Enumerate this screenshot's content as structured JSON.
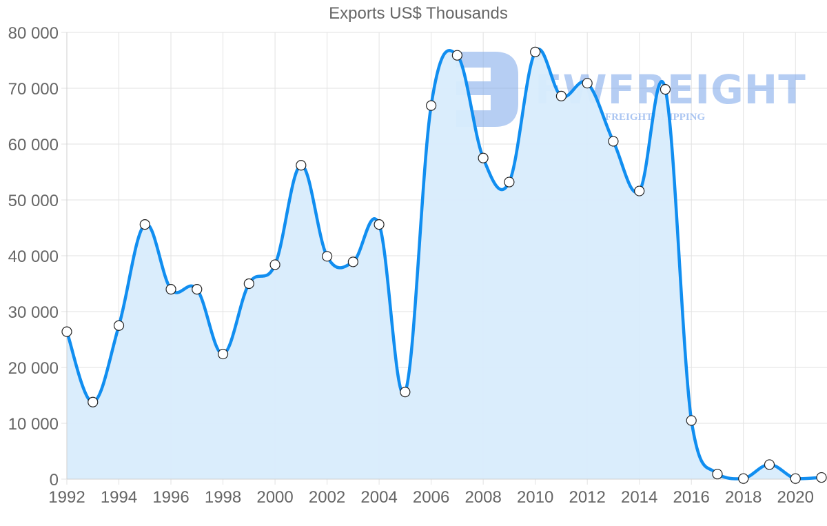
{
  "chart_data": {
    "type": "area",
    "title": "Exports US$ Thousands",
    "xlabel": "",
    "ylabel": "",
    "x": [
      1992,
      1993,
      1994,
      1995,
      1996,
      1997,
      1998,
      1999,
      2000,
      2001,
      2002,
      2003,
      2004,
      2005,
      2006,
      2007,
      2008,
      2009,
      2010,
      2011,
      2012,
      2013,
      2014,
      2015,
      2016,
      2017,
      2018,
      2019,
      2020,
      2021
    ],
    "series": [
      {
        "name": "Exports US$ Thousands",
        "values": [
          26400,
          13800,
          27500,
          45600,
          34000,
          34000,
          22400,
          35000,
          38400,
          56200,
          39900,
          38900,
          45600,
          15600,
          66900,
          75900,
          57500,
          53200,
          76500,
          68600,
          70900,
          60500,
          51600,
          69800,
          10500,
          900,
          100,
          2600,
          100,
          300
        ]
      }
    ],
    "ylim": [
      0,
      80000
    ],
    "y_ticks": [
      0,
      10000,
      20000,
      30000,
      40000,
      50000,
      60000,
      70000,
      80000
    ],
    "y_tick_labels": [
      "0",
      "10 000",
      "20 000",
      "30 000",
      "40 000",
      "50 000",
      "60 000",
      "70 000",
      "80 000"
    ],
    "x_tick_labels": [
      "1992",
      "1994",
      "1996",
      "1998",
      "2000",
      "2002",
      "2004",
      "2006",
      "2008",
      "2010",
      "2012",
      "2014",
      "2016",
      "2018",
      "2020"
    ],
    "grid": true,
    "legend": "none",
    "line_color": "#118ef0",
    "fill_color": "#d8ecfc",
    "point_fill": "#ffffff",
    "point_stroke": "#222222"
  },
  "watermark": {
    "brand": "FWFREIGHT",
    "tagline": "FREIGHT SHIPPING",
    "color": "#7aa6ea"
  }
}
